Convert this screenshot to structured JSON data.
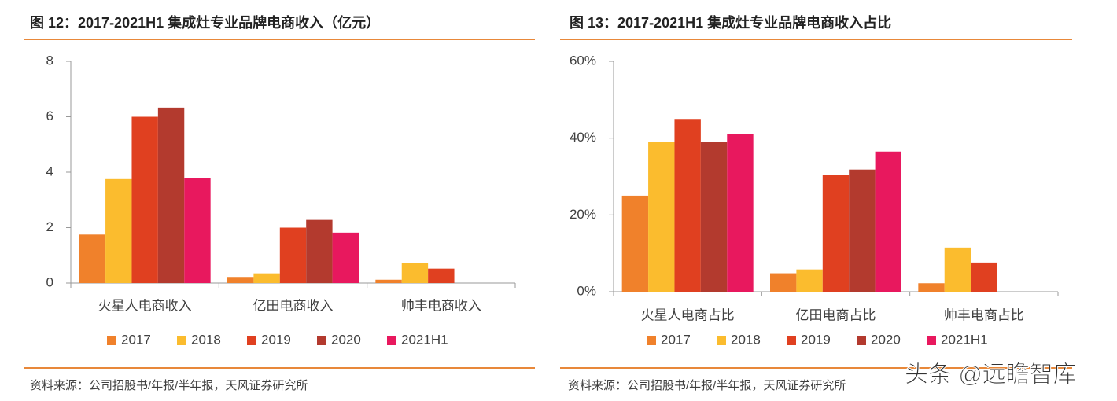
{
  "chart_data": [
    {
      "type": "bar",
      "title": "图 12：2017-2021H1 集成灶专业品牌电商收入（亿元）",
      "categories": [
        "火星人电商收入",
        "亿田电商收入",
        "帅丰电商收入"
      ],
      "series": [
        {
          "name": "2017",
          "color": "#f0812b",
          "values": [
            1.75,
            0.22,
            0.12
          ]
        },
        {
          "name": "2018",
          "color": "#fbbc2e",
          "values": [
            3.75,
            0.35,
            0.73
          ]
        },
        {
          "name": "2019",
          "color": "#e04020",
          "values": [
            6.0,
            2.0,
            0.52
          ]
        },
        {
          "name": "2020",
          "color": "#b33a2e",
          "values": [
            6.33,
            2.28,
            null
          ]
        },
        {
          "name": "2021H1",
          "color": "#e8185e",
          "values": [
            3.78,
            1.82,
            null
          ]
        }
      ],
      "ylim": [
        0,
        8
      ],
      "yticks": [
        0,
        2,
        4,
        6,
        8
      ],
      "grid": false,
      "source": "资料来源：公司招股书/年报/半年报，天风证券研究所"
    },
    {
      "type": "bar",
      "title": "图 13：2017-2021H1 集成灶专业品牌电商收入占比",
      "categories": [
        "火星人电商占比",
        "亿田电商占比",
        "帅丰电商占比"
      ],
      "series": [
        {
          "name": "2017",
          "color": "#f0812b",
          "values": [
            25,
            4.8,
            2.2
          ]
        },
        {
          "name": "2018",
          "color": "#fbbc2e",
          "values": [
            39,
            5.8,
            11.5
          ]
        },
        {
          "name": "2019",
          "color": "#e04020",
          "values": [
            45,
            30.5,
            7.6
          ]
        },
        {
          "name": "2020",
          "color": "#b33a2e",
          "values": [
            39,
            31.8,
            null
          ]
        },
        {
          "name": "2021H1",
          "color": "#e8185e",
          "values": [
            41,
            36.5,
            null
          ]
        }
      ],
      "ylim": [
        0,
        60
      ],
      "yticks": [
        {
          "value": 0,
          "label": "0%"
        },
        {
          "value": 20,
          "label": "20%"
        },
        {
          "value": 40,
          "label": "40%"
        },
        {
          "value": 60,
          "label": "60%"
        }
      ],
      "grid": false,
      "source": "资料来源：公司招股书/年报/半年报，天风证券研究所"
    }
  ],
  "watermark": "头条 @远瞻智库"
}
